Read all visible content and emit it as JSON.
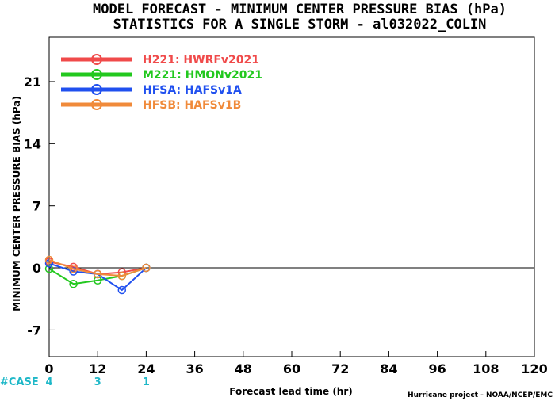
{
  "chart_data": {
    "type": "line",
    "title": "MODEL FORECAST - MINIMUM CENTER PRESSURE BIAS (hPa)",
    "subtitle": "STATISTICS FOR A SINGLE STORM - al032022_COLIN",
    "xlabel": "Forecast lead time (hr)",
    "ylabel": "MINIMUM CENTER PRESSURE BIAS (hPa)",
    "xlim": [
      0,
      120
    ],
    "ylim": [
      -10,
      26
    ],
    "xticks": [
      0,
      12,
      24,
      36,
      48,
      60,
      72,
      84,
      96,
      108,
      120
    ],
    "yticks": [
      -7,
      0,
      7,
      14,
      21
    ],
    "grid": false,
    "legend_position": "top-left",
    "zero_line": true,
    "series": [
      {
        "name": "H221: HWRFv2021",
        "color": "#f04a4a",
        "x": [
          0,
          6,
          12,
          18,
          24
        ],
        "y": [
          0.7,
          0.1,
          -0.7,
          -0.5,
          0.0
        ]
      },
      {
        "name": "M221: HMONv2021",
        "color": "#22c81e",
        "x": [
          0,
          6,
          12,
          18,
          24
        ],
        "y": [
          -0.1,
          -1.8,
          -1.4,
          -0.9,
          0.0
        ]
      },
      {
        "name": "HFSA: HAFSv1A",
        "color": "#2050ef",
        "x": [
          0,
          6,
          12,
          18,
          24
        ],
        "y": [
          0.5,
          -0.4,
          -0.7,
          -2.5,
          0.0
        ]
      },
      {
        "name": "HFSB: HAFSv1B",
        "color": "#f08a3a",
        "x": [
          0,
          6,
          12,
          18,
          24
        ],
        "y": [
          0.9,
          -0.1,
          -0.7,
          -0.9,
          0.0
        ]
      }
    ],
    "case_label": "#CASE",
    "case_counts": [
      {
        "x": 0,
        "n": "4"
      },
      {
        "x": 12,
        "n": "3"
      },
      {
        "x": 24,
        "n": "1"
      }
    ],
    "case_color": "#1fb8c8",
    "credit": "Hurricane project - NOAA/NCEP/EMC"
  }
}
